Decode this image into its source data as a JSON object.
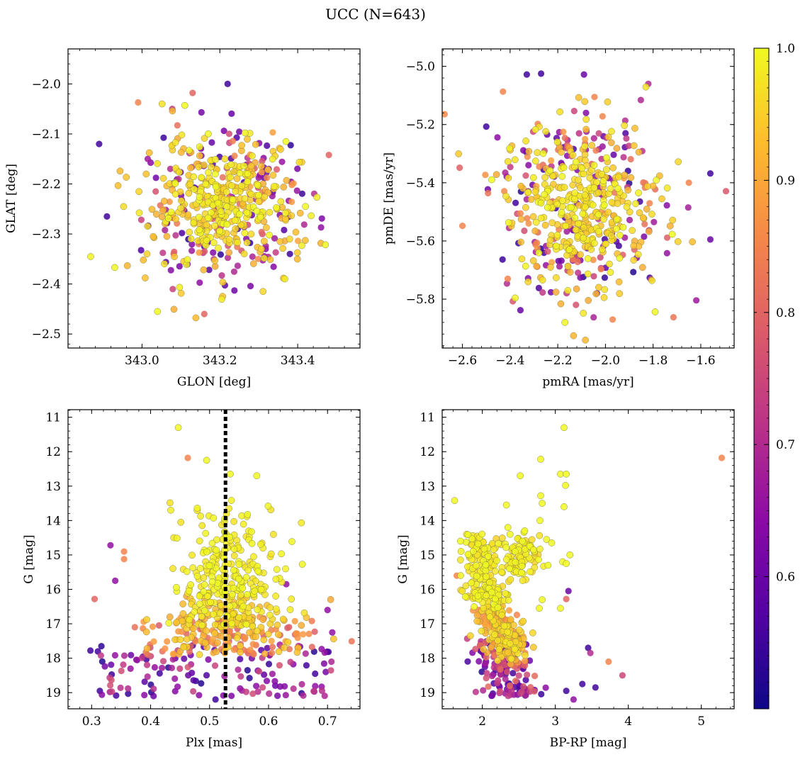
{
  "chart_data": [
    {
      "id": "p1",
      "type": "scatter",
      "xlabel": "GLON [deg]",
      "ylabel": "GLAT [deg]",
      "xlim": [
        342.81,
        343.56
      ],
      "ylim": [
        -2.528,
        -1.93
      ],
      "y_inverted": false,
      "xticks": [
        343.0,
        343.2,
        343.4
      ],
      "xtick_labels": [
        "343.0",
        "343.2",
        "343.4"
      ],
      "yticks": [
        -2.5,
        -2.4,
        -2.3,
        -2.2,
        -2.1,
        -2.0
      ],
      "ytick_labels": [
        "−2.5",
        "−2.4",
        "−2.3",
        "−2.2",
        "−2.1",
        "−2.0"
      ],
      "center": [
        343.2,
        -2.24
      ],
      "spread": [
        0.1,
        0.07
      ],
      "vline": null,
      "points": [
        {
          "x": 343.22,
          "y": -2.0,
          "p": 0.55
        },
        {
          "x": 343.13,
          "y": -2.018,
          "p": 0.8
        },
        {
          "x": 342.89,
          "y": -2.12,
          "p": 0.55
        },
        {
          "x": 343.48,
          "y": -2.142,
          "p": 0.8
        },
        {
          "x": 342.93,
          "y": -2.367,
          "p": 1.0
        },
        {
          "x": 343.16,
          "y": -2.46,
          "p": 0.8
        },
        {
          "x": 343.04,
          "y": -2.455,
          "p": 1.0
        },
        {
          "x": 343.46,
          "y": -2.287,
          "p": 0.65
        },
        {
          "x": 343.38,
          "y": -2.34,
          "p": 0.55
        },
        {
          "x": 343.42,
          "y": -2.245,
          "p": 1.0
        },
        {
          "x": 343.37,
          "y": -2.115,
          "p": 1.0
        },
        {
          "x": 342.99,
          "y": -2.037,
          "p": 0.85
        },
        {
          "x": 342.91,
          "y": -2.265,
          "p": 0.55
        },
        {
          "x": 343.11,
          "y": -2.043,
          "p": 1.0
        }
      ]
    },
    {
      "id": "p2",
      "type": "scatter",
      "xlabel": "pmRA [mas/yr]",
      "ylabel": "pmDE [mas/yr]",
      "xlim": [
        -2.685,
        -1.46
      ],
      "ylim": [
        -5.968,
        -4.94
      ],
      "y_inverted": false,
      "xticks": [
        -2.6,
        -2.4,
        -2.2,
        -2.0,
        -1.8,
        -1.6
      ],
      "xtick_labels": [
        "−2.6",
        "−2.4",
        "−2.2",
        "−2.0",
        "−1.8",
        "−1.6"
      ],
      "yticks": [
        -5.8,
        -5.6,
        -5.4,
        -5.2,
        -5.0
      ],
      "ytick_labels": [
        "−5.8",
        "−5.6",
        "−5.4",
        "−5.2",
        "−5.0"
      ],
      "center": [
        -2.1,
        -5.48
      ],
      "spread": [
        0.17,
        0.15
      ],
      "vline": null,
      "points": [
        {
          "x": -2.33,
          "y": -5.028,
          "p": 0.55
        },
        {
          "x": -2.27,
          "y": -5.025,
          "p": 0.55
        },
        {
          "x": -2.09,
          "y": -5.028,
          "p": 0.6
        },
        {
          "x": -1.82,
          "y": -5.06,
          "p": 0.7
        },
        {
          "x": -2.43,
          "y": -5.087,
          "p": 0.85
        },
        {
          "x": -2.5,
          "y": -5.207,
          "p": 0.55
        },
        {
          "x": -1.56,
          "y": -5.368,
          "p": 0.55
        },
        {
          "x": -1.65,
          "y": -5.4,
          "p": 0.85
        },
        {
          "x": -2.6,
          "y": -5.548,
          "p": 0.85
        },
        {
          "x": -2.17,
          "y": -5.88,
          "p": 1.0
        },
        {
          "x": -1.97,
          "y": -5.87,
          "p": 0.85
        },
        {
          "x": -2.41,
          "y": -5.73,
          "p": 0.85
        },
        {
          "x": -1.56,
          "y": -5.595,
          "p": 0.6
        },
        {
          "x": -1.72,
          "y": -5.577,
          "p": 1.0
        }
      ]
    },
    {
      "id": "p3",
      "type": "scatter",
      "xlabel": "Plx [mas]",
      "ylabel": "G [mag]",
      "xlim": [
        0.26,
        0.755
      ],
      "ylim": [
        19.47,
        10.78
      ],
      "y_inverted": true,
      "xticks": [
        0.3,
        0.4,
        0.5,
        0.6,
        0.7
      ],
      "xtick_labels": [
        "0.3",
        "0.4",
        "0.5",
        "0.6",
        "0.7"
      ],
      "yticks": [
        11,
        12,
        13,
        14,
        15,
        16,
        17,
        18,
        19
      ],
      "ytick_labels": [
        "11",
        "12",
        "13",
        "14",
        "15",
        "16",
        "17",
        "18",
        "19"
      ],
      "vline": 0.527,
      "points": [
        {
          "x": 0.447,
          "y": 11.3,
          "p": 1.0
        },
        {
          "x": 0.463,
          "y": 12.18,
          "p": 0.85
        },
        {
          "x": 0.495,
          "y": 12.25,
          "p": 1.0
        },
        {
          "x": 0.535,
          "y": 12.65,
          "p": 1.0
        },
        {
          "x": 0.58,
          "y": 12.7,
          "p": 1.0
        },
        {
          "x": 0.332,
          "y": 14.72,
          "p": 0.65
        },
        {
          "x": 0.355,
          "y": 14.9,
          "p": 0.85
        },
        {
          "x": 0.355,
          "y": 15.12,
          "p": 0.85
        },
        {
          "x": 0.34,
          "y": 15.75,
          "p": 0.65
        },
        {
          "x": 0.305,
          "y": 16.28,
          "p": 0.8
        },
        {
          "x": 0.7,
          "y": 16.6,
          "p": 0.65
        },
        {
          "x": 0.298,
          "y": 17.78,
          "p": 0.55
        },
        {
          "x": 0.314,
          "y": 18.95,
          "p": 0.55
        },
        {
          "x": 0.405,
          "y": 19.1,
          "p": 0.6
        },
        {
          "x": 0.69,
          "y": 18.83,
          "p": 0.65
        },
        {
          "x": 0.708,
          "y": 17.25,
          "p": 0.65
        },
        {
          "x": 0.51,
          "y": 19.2,
          "p": 0.55
        },
        {
          "x": 0.63,
          "y": 15.85,
          "p": 0.65
        }
      ]
    },
    {
      "id": "p4",
      "type": "scatter",
      "xlabel": "BP-RP [mag]",
      "ylabel": "G [mag]",
      "xlim": [
        1.45,
        5.45
      ],
      "ylim": [
        19.47,
        10.78
      ],
      "y_inverted": true,
      "xticks": [
        2,
        3,
        4,
        5
      ],
      "xtick_labels": [
        "2",
        "3",
        "4",
        "5"
      ],
      "yticks": [
        11,
        12,
        13,
        14,
        15,
        16,
        17,
        18,
        19
      ],
      "ytick_labels": [
        "11",
        "12",
        "13",
        "14",
        "15",
        "16",
        "17",
        "18",
        "19"
      ],
      "vline": null,
      "points": [
        {
          "x": 3.12,
          "y": 11.3,
          "p": 1.0
        },
        {
          "x": 2.8,
          "y": 12.22,
          "p": 1.0
        },
        {
          "x": 5.28,
          "y": 12.18,
          "p": 0.85
        },
        {
          "x": 2.52,
          "y": 12.7,
          "p": 1.0
        },
        {
          "x": 3.07,
          "y": 12.65,
          "p": 1.0
        },
        {
          "x": 3.15,
          "y": 12.65,
          "p": 1.0
        },
        {
          "x": 3.14,
          "y": 12.98,
          "p": 1.0
        },
        {
          "x": 2.8,
          "y": 13.28,
          "p": 1.0
        },
        {
          "x": 2.82,
          "y": 13.5,
          "p": 1.0
        },
        {
          "x": 2.33,
          "y": 13.55,
          "p": 1.0
        },
        {
          "x": 3.12,
          "y": 13.6,
          "p": 1.0
        },
        {
          "x": 1.62,
          "y": 13.42,
          "p": 1.0
        },
        {
          "x": 2.79,
          "y": 14.0,
          "p": 1.0
        },
        {
          "x": 2.35,
          "y": 14.2,
          "p": 1.0
        },
        {
          "x": 2.38,
          "y": 14.4,
          "p": 1.0
        },
        {
          "x": 2.58,
          "y": 14.3,
          "p": 1.0
        },
        {
          "x": 2.55,
          "y": 14.6,
          "p": 1.0
        },
        {
          "x": 2.65,
          "y": 14.75,
          "p": 1.0
        },
        {
          "x": 2.88,
          "y": 14.55,
          "p": 1.0
        },
        {
          "x": 2.95,
          "y": 14.65,
          "p": 1.0
        },
        {
          "x": 2.7,
          "y": 14.85,
          "p": 1.0
        },
        {
          "x": 2.45,
          "y": 14.9,
          "p": 1.0
        },
        {
          "x": 3.2,
          "y": 15.0,
          "p": 1.0
        },
        {
          "x": 3.1,
          "y": 15.2,
          "p": 1.0
        },
        {
          "x": 2.9,
          "y": 15.3,
          "p": 1.0
        },
        {
          "x": 3.15,
          "y": 15.25,
          "p": 1.0
        },
        {
          "x": 3.18,
          "y": 16.05,
          "p": 0.6
        },
        {
          "x": 3.15,
          "y": 16.28,
          "p": 0.8
        },
        {
          "x": 2.82,
          "y": 16.3,
          "p": 1.0
        },
        {
          "x": 3.07,
          "y": 16.55,
          "p": 1.0
        },
        {
          "x": 2.78,
          "y": 16.55,
          "p": 1.0
        },
        {
          "x": 3.45,
          "y": 17.7,
          "p": 0.55
        },
        {
          "x": 3.48,
          "y": 17.85,
          "p": 0.7
        },
        {
          "x": 3.73,
          "y": 18.1,
          "p": 0.85
        },
        {
          "x": 3.92,
          "y": 18.5,
          "p": 0.75
        },
        {
          "x": 3.55,
          "y": 18.85,
          "p": 0.55
        },
        {
          "x": 3.37,
          "y": 18.75,
          "p": 0.55
        },
        {
          "x": 3.15,
          "y": 18.95,
          "p": 0.55
        },
        {
          "x": 3.25,
          "y": 19.2,
          "p": 0.65
        },
        {
          "x": 2.6,
          "y": 19.0,
          "p": 0.55
        },
        {
          "x": 1.7,
          "y": 14.6,
          "p": 1.0
        },
        {
          "x": 1.65,
          "y": 15.6,
          "p": 0.85
        }
      ]
    }
  ],
  "figure": {
    "title": "UCC (N=643)",
    "colorbar": {
      "cmap": "plasma",
      "range": [
        0.5,
        1.0
      ],
      "ticks": [
        0.6,
        0.7,
        0.8,
        0.9,
        1.0
      ],
      "tick_labels": [
        "0.6",
        "0.7",
        "0.8",
        "0.9",
        "1.0"
      ]
    }
  }
}
